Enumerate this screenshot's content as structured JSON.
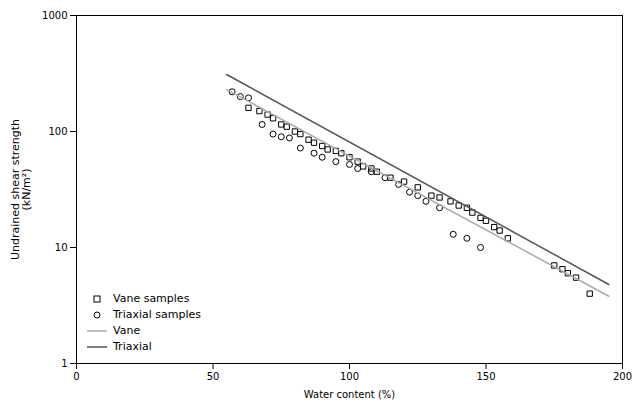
{
  "chart_data": {
    "type": "scatter",
    "xlabel": "Water content (%)",
    "ylabel": "Undrained shear strength\n(kN/m²)",
    "xlim": [
      0,
      200
    ],
    "xticks": [
      0,
      50,
      100,
      150,
      200
    ],
    "ylim": [
      1,
      1000
    ],
    "yticks": [
      1,
      10,
      100,
      1000
    ],
    "log": "y",
    "grid": false,
    "legend": "lower left",
    "series": [
      {
        "name": "Vane samples",
        "type": "scatter",
        "marker": "square",
        "color": "#000000",
        "x": [
          63,
          67,
          70,
          72,
          75,
          77,
          80,
          82,
          85,
          87,
          90,
          92,
          95,
          97,
          100,
          103,
          105,
          108,
          110,
          115,
          120,
          125,
          130,
          133,
          137,
          140,
          143,
          145,
          148,
          150,
          153,
          155,
          158,
          175,
          178,
          180,
          183,
          188
        ],
        "values": [
          160,
          150,
          140,
          130,
          115,
          110,
          100,
          95,
          85,
          80,
          75,
          70,
          68,
          65,
          60,
          55,
          50,
          48,
          45,
          40,
          37,
          33,
          28,
          27,
          25,
          23,
          22,
          20,
          18,
          17,
          15,
          14,
          12,
          7,
          6.5,
          6,
          5.5,
          4
        ]
      },
      {
        "name": "Triaxial samples",
        "type": "scatter",
        "marker": "circle",
        "color": "#000000",
        "x": [
          57,
          60,
          63,
          68,
          72,
          75,
          78,
          82,
          87,
          90,
          95,
          100,
          103,
          108,
          113,
          118,
          122,
          125,
          128,
          133,
          138,
          143,
          148
        ],
        "values": [
          220,
          200,
          195,
          115,
          95,
          90,
          88,
          72,
          65,
          60,
          55,
          52,
          48,
          45,
          40,
          35,
          30,
          28,
          25,
          22,
          13,
          12,
          10
        ]
      },
      {
        "name": "Vane",
        "type": "line",
        "line_style": "solid",
        "color": "#aaaaaa",
        "x": [
          55,
          195
        ],
        "values": [
          230,
          3.8
        ]
      },
      {
        "name": "Triaxial",
        "type": "line",
        "line_style": "solid",
        "color": "#555555",
        "x": [
          55,
          195
        ],
        "values": [
          310,
          4.8
        ]
      }
    ]
  }
}
